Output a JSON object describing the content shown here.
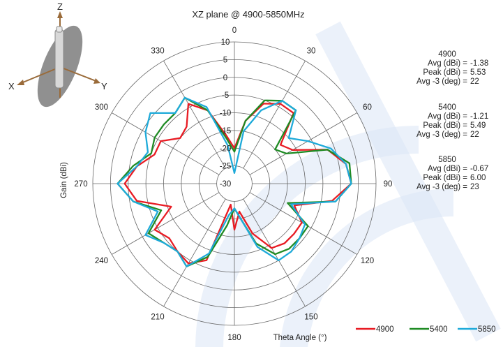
{
  "colors": {
    "c4900": "#e81b23",
    "c5400": "#1f8b24",
    "c5850": "#1eaad9",
    "grid": "#666666",
    "watermark": "#dbe5f6"
  },
  "chart_data": {
    "type": "polar-line",
    "title": "XZ plane @ 4900-5850MHz",
    "xlabel": "Theta  Angle (°)",
    "ylabel": "Gain  (dBi)",
    "angle_ticks": [
      "0",
      "30",
      "60",
      "90",
      "120",
      "150",
      "180",
      "210",
      "240",
      "270",
      "300",
      "330"
    ],
    "radial_ticks": [
      "10",
      "5",
      "0",
      "-5",
      "-10",
      "-15",
      "-20",
      "-25",
      "-30"
    ],
    "rlim": [
      -30,
      10
    ],
    "legend_position": "bottom-right",
    "theta": [
      0,
      10,
      20,
      30,
      40,
      50,
      60,
      70,
      80,
      90,
      100,
      110,
      120,
      130,
      140,
      150,
      160,
      170,
      180,
      190,
      200,
      210,
      220,
      230,
      240,
      250,
      260,
      270,
      280,
      290,
      300,
      310,
      320,
      330,
      340,
      350
    ],
    "series": [
      {
        "name": "4900",
        "values": [
          -20,
          -12,
          -6,
          -4,
          -4,
          -13,
          -11,
          -2,
          2,
          3,
          -2,
          -12,
          -8,
          -8,
          -8,
          -9,
          -15,
          -22,
          -17,
          -24,
          -7,
          -4,
          -5,
          -6,
          -4,
          -11,
          -2,
          1,
          -2,
          -6,
          -6,
          -10,
          -9,
          -4,
          -8,
          -16
        ]
      },
      {
        "name": "5400",
        "values": [
          -21,
          -12,
          -5,
          -3,
          -3,
          -15,
          -13,
          -2,
          3,
          3,
          -1,
          -14,
          -6,
          -6,
          -6,
          -7,
          -12,
          -20,
          -23,
          -18,
          -8,
          -3,
          -5,
          -4,
          -2,
          -8,
          -1,
          3,
          -1,
          -5,
          -4,
          -4,
          -4,
          -2,
          -8,
          -17
        ]
      },
      {
        "name": "5850",
        "values": [
          -27,
          -15,
          -8,
          -3,
          -3,
          -10,
          -6,
          -1,
          2,
          3,
          -1,
          -13,
          -7,
          -6,
          -5,
          -5,
          -11,
          -20,
          -23,
          -21,
          -9,
          -3,
          -5,
          -4,
          -1,
          -7,
          -1,
          3,
          -2,
          -4,
          -1,
          1,
          -4,
          -2,
          -7,
          -19
        ]
      }
    ]
  },
  "stats": [
    {
      "freq": "4900",
      "avg_label": "Avg (dBi) =",
      "avg": "-1.38",
      "peak_label": "Peak (dBi) =",
      "peak": "5.53",
      "bw_label": "Avg -3 (deg) =",
      "bw": "22"
    },
    {
      "freq": "5400",
      "avg_label": "Avg (dBi) =",
      "avg": "-1.21",
      "peak_label": "Peak (dBi) =",
      "peak": "5.49",
      "bw_label": "Avg -3 (deg) =",
      "bw": "22"
    },
    {
      "freq": "5850",
      "avg_label": "Avg (dBi) =",
      "avg": "-0.67",
      "peak_label": "Peak (dBi) =",
      "peak": "6.00",
      "bw_label": "Avg -3 (deg) =",
      "bw": "23"
    }
  ],
  "axes_icon": {
    "z": "Z",
    "x": "X",
    "y": "Y"
  }
}
